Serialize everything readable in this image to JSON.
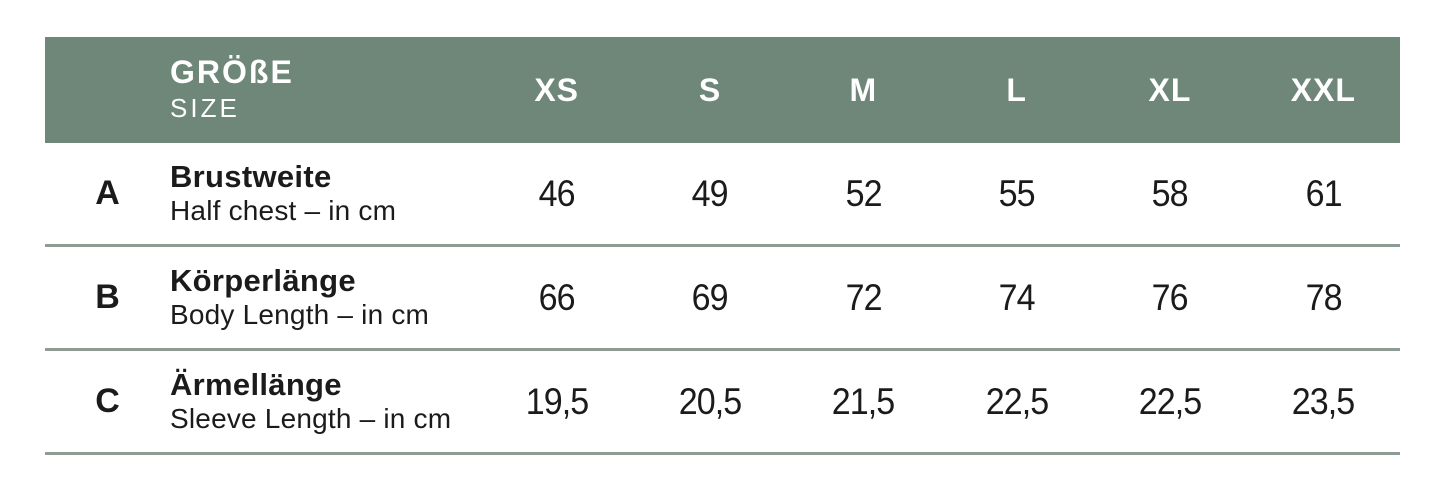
{
  "chart_data": {
    "type": "table",
    "header": {
      "title_de": "GRÖßE",
      "title_en": "SIZE",
      "sizes": [
        "XS",
        "S",
        "M",
        "L",
        "XL",
        "XXL"
      ]
    },
    "rows": [
      {
        "letter": "A",
        "label_de": "Brustweite",
        "label_en": "Half chest – in cm",
        "values": [
          "46",
          "49",
          "52",
          "55",
          "58",
          "61"
        ]
      },
      {
        "letter": "B",
        "label_de": "Körperlänge",
        "label_en": "Body Length – in cm",
        "values": [
          "66",
          "69",
          "72",
          "74",
          "76",
          "78"
        ]
      },
      {
        "letter": "C",
        "label_de": "Ärmellänge",
        "label_en": "Sleeve Length – in cm",
        "values": [
          "19,5",
          "20,5",
          "21,5",
          "22,5",
          "22,5",
          "23,5"
        ]
      }
    ]
  },
  "colors": {
    "header_bg": "#6e8779",
    "header_text": "#ffffff",
    "body_text": "#1b1b1b",
    "divider": "#8e9c94",
    "background": "#ffffff"
  }
}
